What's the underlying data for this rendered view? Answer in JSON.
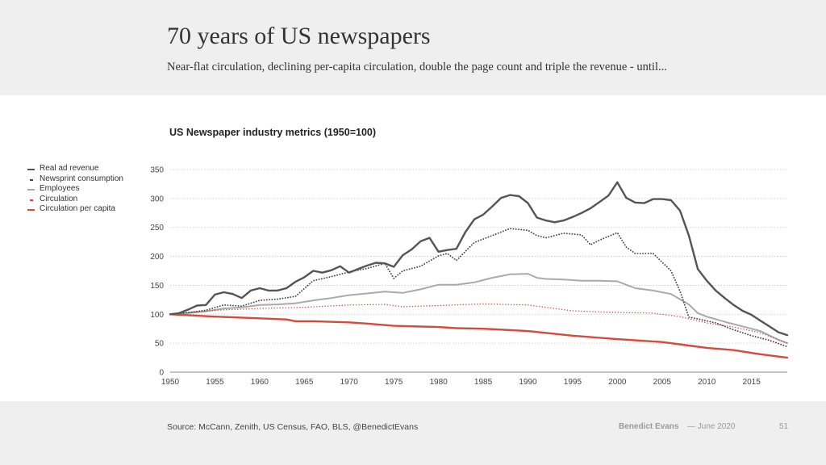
{
  "slide": {
    "title": "70 years of US newspapers",
    "subtitle": "Near-flat circulation, declining per-capita circulation, double the page count and triple the revenue - until...",
    "source": "Source: McCann, Zenith, US Census, FAO, BLS, @BenedictEvans",
    "author": "Benedict Evans",
    "date": "— June 2020",
    "page_number": "51"
  },
  "colors": {
    "header_band": "#efefef",
    "real_ad_revenue": "#555555",
    "newsprint": "#444444",
    "employees": "#aaaaaa",
    "circulation": "#cc4a3e",
    "circulation_per_capita": "#d24b3d",
    "grid": "#c8c8c8"
  },
  "chart_data": {
    "type": "line",
    "title": "US Newspaper industry metrics (1950=100)",
    "xlabel": "",
    "ylabel": "",
    "xlim": [
      1950,
      2019
    ],
    "ylim": [
      0,
      350
    ],
    "x_ticks": [
      "1950",
      "1955",
      "1960",
      "1965",
      "1970",
      "1975",
      "1980",
      "1985",
      "1990",
      "1995",
      "2000",
      "2005",
      "2010",
      "2015"
    ],
    "y_ticks": [
      "0",
      "50",
      "100",
      "150",
      "200",
      "250",
      "300",
      "350"
    ],
    "grid": "horizontal dotted",
    "legend_position": "left",
    "series": [
      {
        "name": "Real ad revenue",
        "style": "solid-thick",
        "color": "#555555",
        "points": [
          [
            1950,
            100
          ],
          [
            1951,
            102
          ],
          [
            1952,
            108
          ],
          [
            1953,
            115
          ],
          [
            1954,
            116
          ],
          [
            1955,
            134
          ],
          [
            1956,
            138
          ],
          [
            1957,
            135
          ],
          [
            1958,
            128
          ],
          [
            1959,
            141
          ],
          [
            1960,
            145
          ],
          [
            1961,
            141
          ],
          [
            1962,
            141
          ],
          [
            1963,
            145
          ],
          [
            1964,
            156
          ],
          [
            1965,
            164
          ],
          [
            1966,
            175
          ],
          [
            1967,
            172
          ],
          [
            1968,
            176
          ],
          [
            1969,
            183
          ],
          [
            1970,
            172
          ],
          [
            1971,
            178
          ],
          [
            1972,
            184
          ],
          [
            1973,
            189
          ],
          [
            1974,
            188
          ],
          [
            1975,
            182
          ],
          [
            1976,
            202
          ],
          [
            1977,
            212
          ],
          [
            1978,
            226
          ],
          [
            1979,
            232
          ],
          [
            1980,
            208
          ],
          [
            1981,
            211
          ],
          [
            1982,
            213
          ],
          [
            1983,
            242
          ],
          [
            1984,
            264
          ],
          [
            1985,
            272
          ],
          [
            1986,
            286
          ],
          [
            1987,
            301
          ],
          [
            1988,
            306
          ],
          [
            1989,
            304
          ],
          [
            1990,
            292
          ],
          [
            1991,
            267
          ],
          [
            1992,
            262
          ],
          [
            1993,
            259
          ],
          [
            1994,
            262
          ],
          [
            1995,
            268
          ],
          [
            1996,
            275
          ],
          [
            1997,
            283
          ],
          [
            1998,
            294
          ],
          [
            1999,
            305
          ],
          [
            2000,
            328
          ],
          [
            2001,
            301
          ],
          [
            2002,
            293
          ],
          [
            2003,
            292
          ],
          [
            2004,
            299
          ],
          [
            2005,
            299
          ],
          [
            2006,
            297
          ],
          [
            2007,
            279
          ],
          [
            2008,
            236
          ],
          [
            2009,
            178
          ],
          [
            2010,
            158
          ],
          [
            2011,
            141
          ],
          [
            2012,
            128
          ],
          [
            2013,
            116
          ],
          [
            2014,
            106
          ],
          [
            2015,
            99
          ],
          [
            2016,
            89
          ],
          [
            2017,
            79
          ],
          [
            2018,
            69
          ],
          [
            2019,
            64
          ]
        ]
      },
      {
        "name": "Newsprint consumption",
        "style": "dotted-dark",
        "color": "#444444",
        "points": [
          [
            1950,
            100
          ],
          [
            1952,
            103
          ],
          [
            1954,
            107
          ],
          [
            1956,
            116
          ],
          [
            1958,
            114
          ],
          [
            1960,
            124
          ],
          [
            1962,
            126
          ],
          [
            1964,
            131
          ],
          [
            1966,
            158
          ],
          [
            1968,
            165
          ],
          [
            1970,
            173
          ],
          [
            1972,
            179
          ],
          [
            1974,
            188
          ],
          [
            1975,
            162
          ],
          [
            1976,
            175
          ],
          [
            1978,
            183
          ],
          [
            1980,
            201
          ],
          [
            1981,
            205
          ],
          [
            1982,
            193
          ],
          [
            1984,
            224
          ],
          [
            1986,
            236
          ],
          [
            1988,
            248
          ],
          [
            1990,
            245
          ],
          [
            1991,
            236
          ],
          [
            1992,
            232
          ],
          [
            1994,
            240
          ],
          [
            1996,
            237
          ],
          [
            1997,
            220
          ],
          [
            1998,
            228
          ],
          [
            2000,
            241
          ],
          [
            2001,
            216
          ],
          [
            2002,
            205
          ],
          [
            2004,
            205
          ],
          [
            2006,
            175
          ],
          [
            2007,
            140
          ],
          [
            2008,
            95
          ],
          [
            2009,
            92
          ],
          [
            2011,
            85
          ],
          [
            2013,
            73
          ],
          [
            2015,
            63
          ],
          [
            2017,
            55
          ],
          [
            2019,
            44
          ]
        ]
      },
      {
        "name": "Employees",
        "style": "solid-light",
        "color": "#aaaaaa",
        "points": [
          [
            1950,
            100
          ],
          [
            1952,
            102
          ],
          [
            1954,
            105
          ],
          [
            1956,
            110
          ],
          [
            1958,
            112
          ],
          [
            1960,
            116
          ],
          [
            1962,
            117
          ],
          [
            1964,
            119
          ],
          [
            1966,
            124
          ],
          [
            1968,
            128
          ],
          [
            1970,
            133
          ],
          [
            1972,
            136
          ],
          [
            1974,
            139
          ],
          [
            1976,
            137
          ],
          [
            1978,
            143
          ],
          [
            1980,
            151
          ],
          [
            1982,
            151
          ],
          [
            1984,
            155
          ],
          [
            1986,
            163
          ],
          [
            1988,
            169
          ],
          [
            1990,
            170
          ],
          [
            1991,
            163
          ],
          [
            1992,
            161
          ],
          [
            1994,
            160
          ],
          [
            1996,
            158
          ],
          [
            1998,
            158
          ],
          [
            2000,
            157
          ],
          [
            2002,
            145
          ],
          [
            2004,
            141
          ],
          [
            2006,
            135
          ],
          [
            2008,
            117
          ],
          [
            2009,
            102
          ],
          [
            2010,
            96
          ],
          [
            2012,
            87
          ],
          [
            2014,
            79
          ],
          [
            2016,
            71
          ],
          [
            2018,
            56
          ],
          [
            2019,
            50
          ]
        ]
      },
      {
        "name": "Circulation",
        "style": "dotted-red",
        "color": "#cc4a3e",
        "points": [
          [
            1950,
            100
          ],
          [
            1955,
            107
          ],
          [
            1960,
            110
          ],
          [
            1965,
            112
          ],
          [
            1970,
            116
          ],
          [
            1974,
            117
          ],
          [
            1976,
            113
          ],
          [
            1980,
            115
          ],
          [
            1985,
            118
          ],
          [
            1990,
            116
          ],
          [
            1995,
            106
          ],
          [
            2000,
            103
          ],
          [
            2004,
            102
          ],
          [
            2007,
            96
          ],
          [
            2010,
            85
          ],
          [
            2013,
            78
          ],
          [
            2016,
            68
          ],
          [
            2019,
            50
          ]
        ]
      },
      {
        "name": "Circulation per capita",
        "style": "solid-red",
        "color": "#d24b3d",
        "points": [
          [
            1950,
            100
          ],
          [
            1955,
            96
          ],
          [
            1960,
            93
          ],
          [
            1963,
            91
          ],
          [
            1964,
            88
          ],
          [
            1966,
            88
          ],
          [
            1970,
            86
          ],
          [
            1972,
            84
          ],
          [
            1975,
            80
          ],
          [
            1980,
            78
          ],
          [
            1982,
            76
          ],
          [
            1985,
            75
          ],
          [
            1990,
            71
          ],
          [
            1995,
            63
          ],
          [
            2000,
            57
          ],
          [
            2005,
            52
          ],
          [
            2008,
            46
          ],
          [
            2010,
            42
          ],
          [
            2013,
            38
          ],
          [
            2016,
            31
          ],
          [
            2019,
            25
          ]
        ]
      }
    ]
  }
}
